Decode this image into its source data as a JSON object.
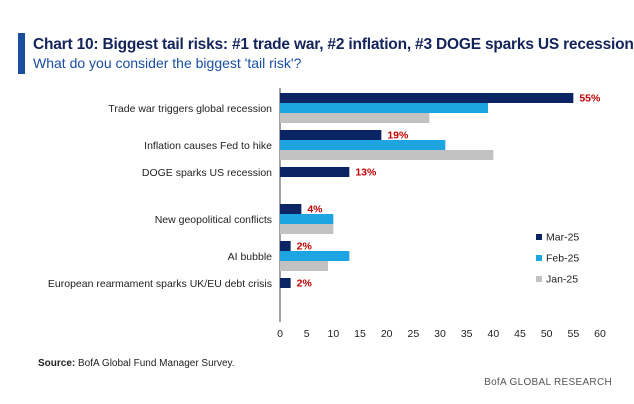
{
  "header": {
    "title": "Chart 10: Biggest tail risks: #1 trade war, #2 inflation, #3 DOGE sparks US recession",
    "subtitle": "What do you consider the biggest 'tail risk'?"
  },
  "footer": {
    "source_label": "Source:",
    "source_text": "BofA Global Fund Manager Survey.",
    "brand": "BofA GLOBAL RESEARCH"
  },
  "colors": {
    "accent": "#1a4fa0",
    "title": "#14235a",
    "label_red": "#c00000"
  },
  "chart_data": {
    "type": "bar",
    "orientation": "horizontal",
    "categories": [
      "Trade war triggers global recession",
      "Inflation causes Fed to hike",
      "DOGE sparks US recession",
      "New geopolitical conflicts",
      "AI bubble",
      "European rearmament sparks UK/EU debt crisis"
    ],
    "series": [
      {
        "name": "Mar-25",
        "color": "#0b2463",
        "values": [
          55,
          19,
          13,
          4,
          2,
          2
        ]
      },
      {
        "name": "Feb-25",
        "color": "#1ca5e0",
        "values": [
          39,
          31,
          null,
          10,
          13,
          null
        ]
      },
      {
        "name": "Jan-25",
        "color": "#c2c2c2",
        "values": [
          28,
          40,
          null,
          10,
          9,
          null
        ]
      }
    ],
    "data_labels": [
      "55%",
      "19%",
      "13%",
      "4%",
      "2%",
      "2%"
    ],
    "xlim": [
      0,
      60
    ],
    "xticks": [
      0,
      5,
      10,
      15,
      20,
      25,
      30,
      35,
      40,
      45,
      50,
      55,
      60
    ],
    "legend_position": "right",
    "grid": false,
    "xlabel": "",
    "ylabel": ""
  }
}
